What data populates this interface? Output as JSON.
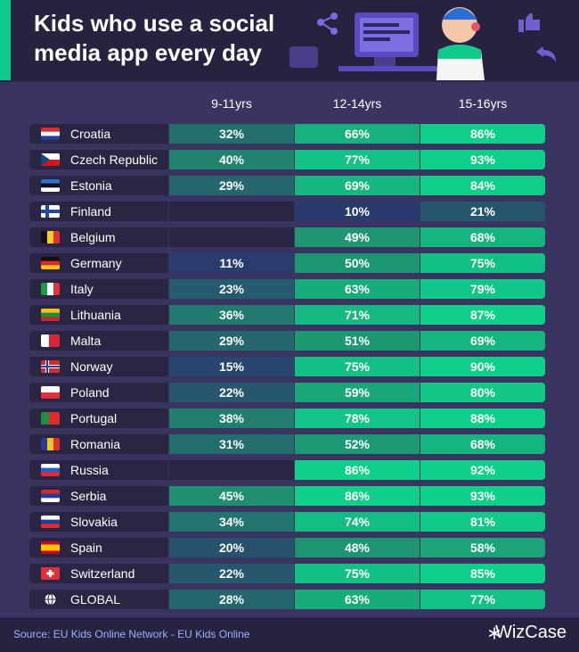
{
  "header": {
    "title": "Kids who use a social media app every day"
  },
  "footer": {
    "source": "Source: EU Kids Online Network - EU Kids Online",
    "brand": "WizCase"
  },
  "colors": {
    "low": "#2a3a6e",
    "mid": "#1f8f6e",
    "high": "#0fd08b",
    "empty": "#292543"
  },
  "chart_data": {
    "type": "table",
    "columns": [
      "9-11yrs",
      "12-14yrs",
      "15-16yrs"
    ],
    "rows": [
      {
        "country": "Croatia",
        "flag": "croatia-flag",
        "values": [
          "32%",
          "66%",
          "86%"
        ]
      },
      {
        "country": "Czech Republic",
        "flag": "czech-flag",
        "values": [
          "40%",
          "77%",
          "93%"
        ]
      },
      {
        "country": "Estonia",
        "flag": "estonia-flag",
        "values": [
          "29%",
          "69%",
          "84%"
        ]
      },
      {
        "country": "Finland",
        "flag": "finland-flag",
        "values": [
          "",
          "10%",
          "21%"
        ]
      },
      {
        "country": "Belgium",
        "flag": "belgium-flag",
        "values": [
          "",
          "49%",
          "68%"
        ]
      },
      {
        "country": "Germany",
        "flag": "germany-flag",
        "values": [
          "11%",
          "50%",
          "75%"
        ]
      },
      {
        "country": "Italy",
        "flag": "italy-flag",
        "values": [
          "23%",
          "63%",
          "79%"
        ]
      },
      {
        "country": "Lithuania",
        "flag": "lithuania-flag",
        "values": [
          "36%",
          "71%",
          "87%"
        ]
      },
      {
        "country": "Malta",
        "flag": "malta-flag",
        "values": [
          "29%",
          "51%",
          "69%"
        ]
      },
      {
        "country": "Norway",
        "flag": "norway-flag",
        "values": [
          "15%",
          "75%",
          "90%"
        ]
      },
      {
        "country": "Poland",
        "flag": "poland-flag",
        "values": [
          "22%",
          "59%",
          "80%"
        ]
      },
      {
        "country": "Portugal",
        "flag": "portugal-flag",
        "values": [
          "38%",
          "78%",
          "88%"
        ]
      },
      {
        "country": "Romania",
        "flag": "romania-flag",
        "values": [
          "31%",
          "52%",
          "68%"
        ]
      },
      {
        "country": "Russia",
        "flag": "russia-flag",
        "values": [
          "",
          "86%",
          "92%"
        ]
      },
      {
        "country": "Serbia",
        "flag": "serbia-flag",
        "values": [
          "45%",
          "86%",
          "93%"
        ]
      },
      {
        "country": "Slovakia",
        "flag": "slovakia-flag",
        "values": [
          "34%",
          "74%",
          "81%"
        ]
      },
      {
        "country": "Spain",
        "flag": "spain-flag",
        "values": [
          "20%",
          "48%",
          "58%"
        ]
      },
      {
        "country": "Switzerland",
        "flag": "switzerland-flag",
        "values": [
          "22%",
          "75%",
          "85%"
        ]
      },
      {
        "country": "GLOBAL",
        "flag": "globe-icon",
        "values": [
          "28%",
          "63%",
          "77%"
        ]
      }
    ]
  }
}
